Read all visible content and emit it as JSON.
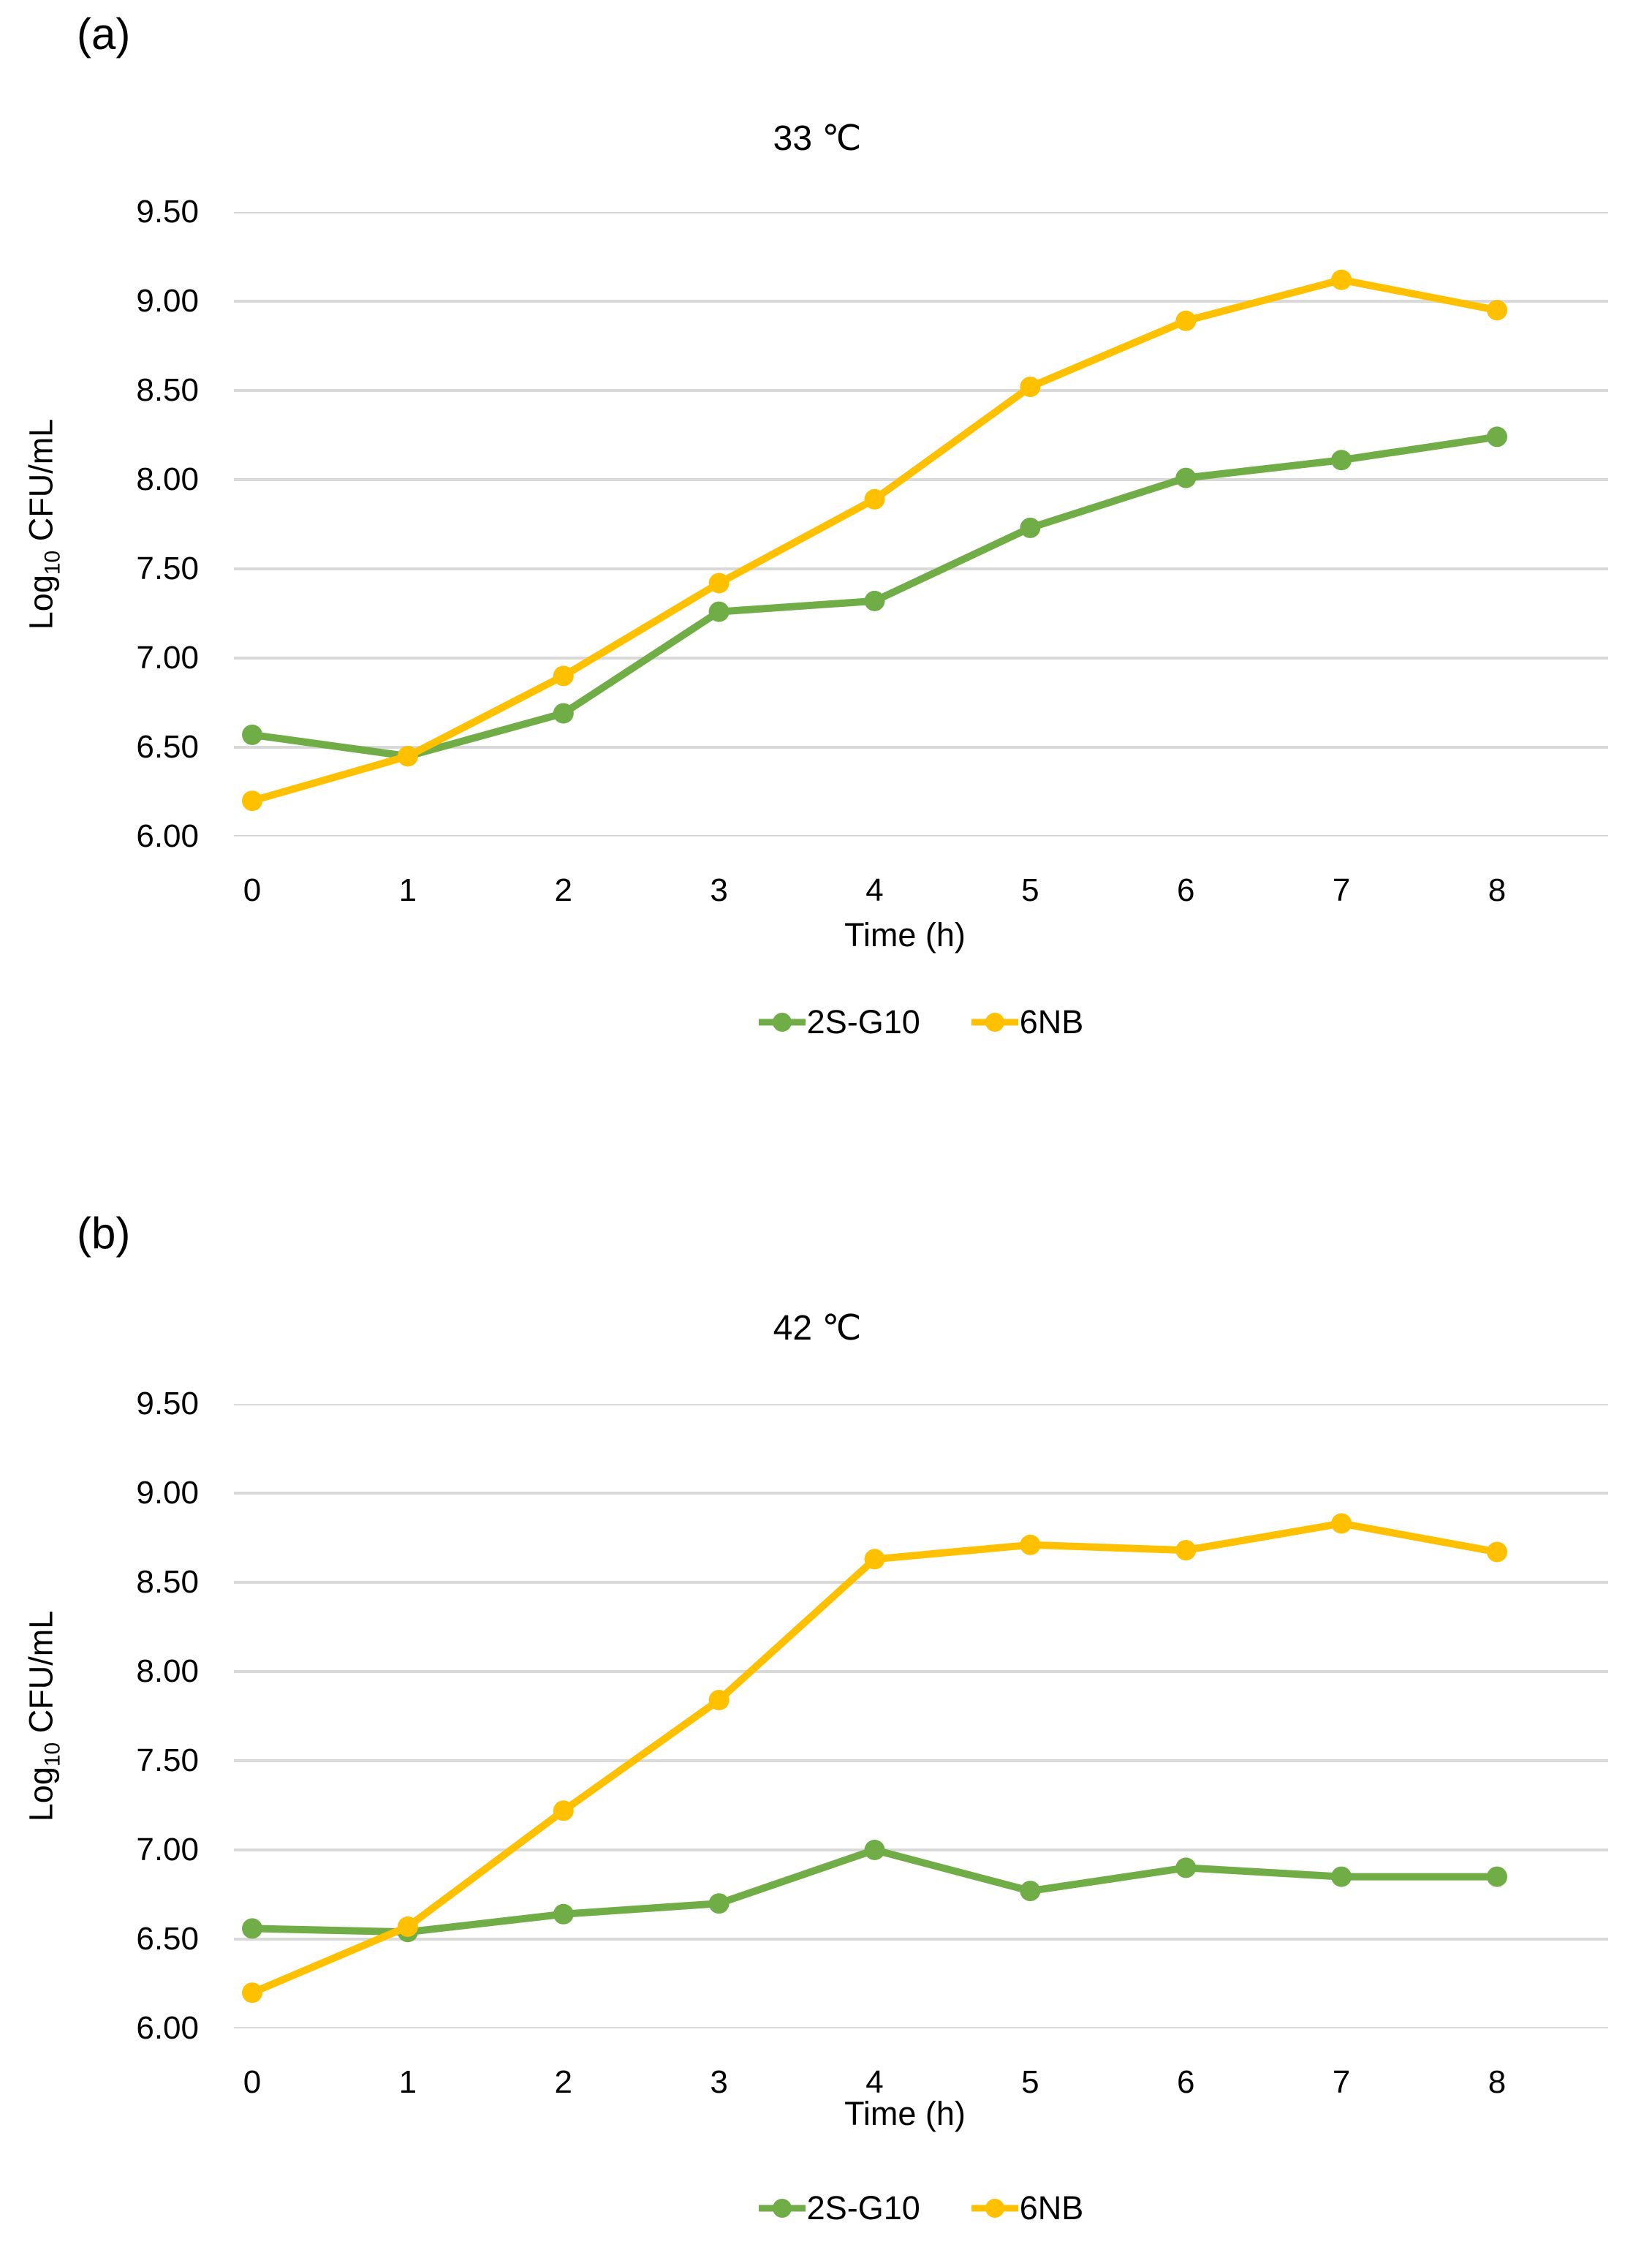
{
  "colors": {
    "grid": "#D9D9D9",
    "text": "#000000",
    "series_green": "#70AD47",
    "series_yellow": "#FFC000"
  },
  "chart_data": [
    {
      "type": "line",
      "panel_label": "(a)",
      "title": "33 ℃",
      "xlabel": "Time (h)",
      "ylabel": {
        "prefix": "Log",
        "sub": "10",
        "suffix": " CFU/mL"
      },
      "x": [
        0,
        1,
        2,
        3,
        4,
        5,
        6,
        7,
        8
      ],
      "xticks": [
        "0",
        "1",
        "2",
        "3",
        "4",
        "5",
        "6",
        "7",
        "8"
      ],
      "yticks": [
        "9.50",
        "9.00",
        "8.50",
        "8.00",
        "7.50",
        "7.00",
        "6.50",
        "6.00"
      ],
      "ylim": [
        6.0,
        9.5
      ],
      "grid": true,
      "legend_position": "bottom",
      "series": [
        {
          "name": "2S-G10",
          "color": "#70AD47",
          "values": [
            6.57,
            6.45,
            6.69,
            7.26,
            7.32,
            7.73,
            8.01,
            8.11,
            8.24
          ]
        },
        {
          "name": "6NB",
          "color": "#FFC000",
          "values": [
            6.2,
            6.45,
            6.9,
            7.42,
            7.89,
            8.52,
            8.89,
            9.12,
            8.95
          ]
        }
      ]
    },
    {
      "type": "line",
      "panel_label": "(b)",
      "title": "42 ℃",
      "xlabel": "Time (h)",
      "ylabel": {
        "prefix": "Log",
        "sub": "10",
        "suffix": " CFU/mL"
      },
      "x": [
        0,
        1,
        2,
        3,
        4,
        5,
        6,
        7,
        8
      ],
      "xticks": [
        "0",
        "1",
        "2",
        "3",
        "4",
        "5",
        "6",
        "7",
        "8"
      ],
      "yticks": [
        "9.50",
        "9.00",
        "8.50",
        "8.00",
        "7.50",
        "7.00",
        "6.50",
        "6.00"
      ],
      "ylim": [
        6.0,
        9.5
      ],
      "grid": true,
      "legend_position": "bottom",
      "series": [
        {
          "name": "2S-G10",
          "color": "#70AD47",
          "values": [
            6.56,
            6.54,
            6.64,
            6.7,
            7.0,
            6.77,
            6.9,
            6.85,
            6.85
          ]
        },
        {
          "name": "6NB",
          "color": "#FFC000",
          "values": [
            6.2,
            6.57,
            7.22,
            7.84,
            8.63,
            8.71,
            8.68,
            8.83,
            8.67
          ]
        }
      ]
    }
  ]
}
